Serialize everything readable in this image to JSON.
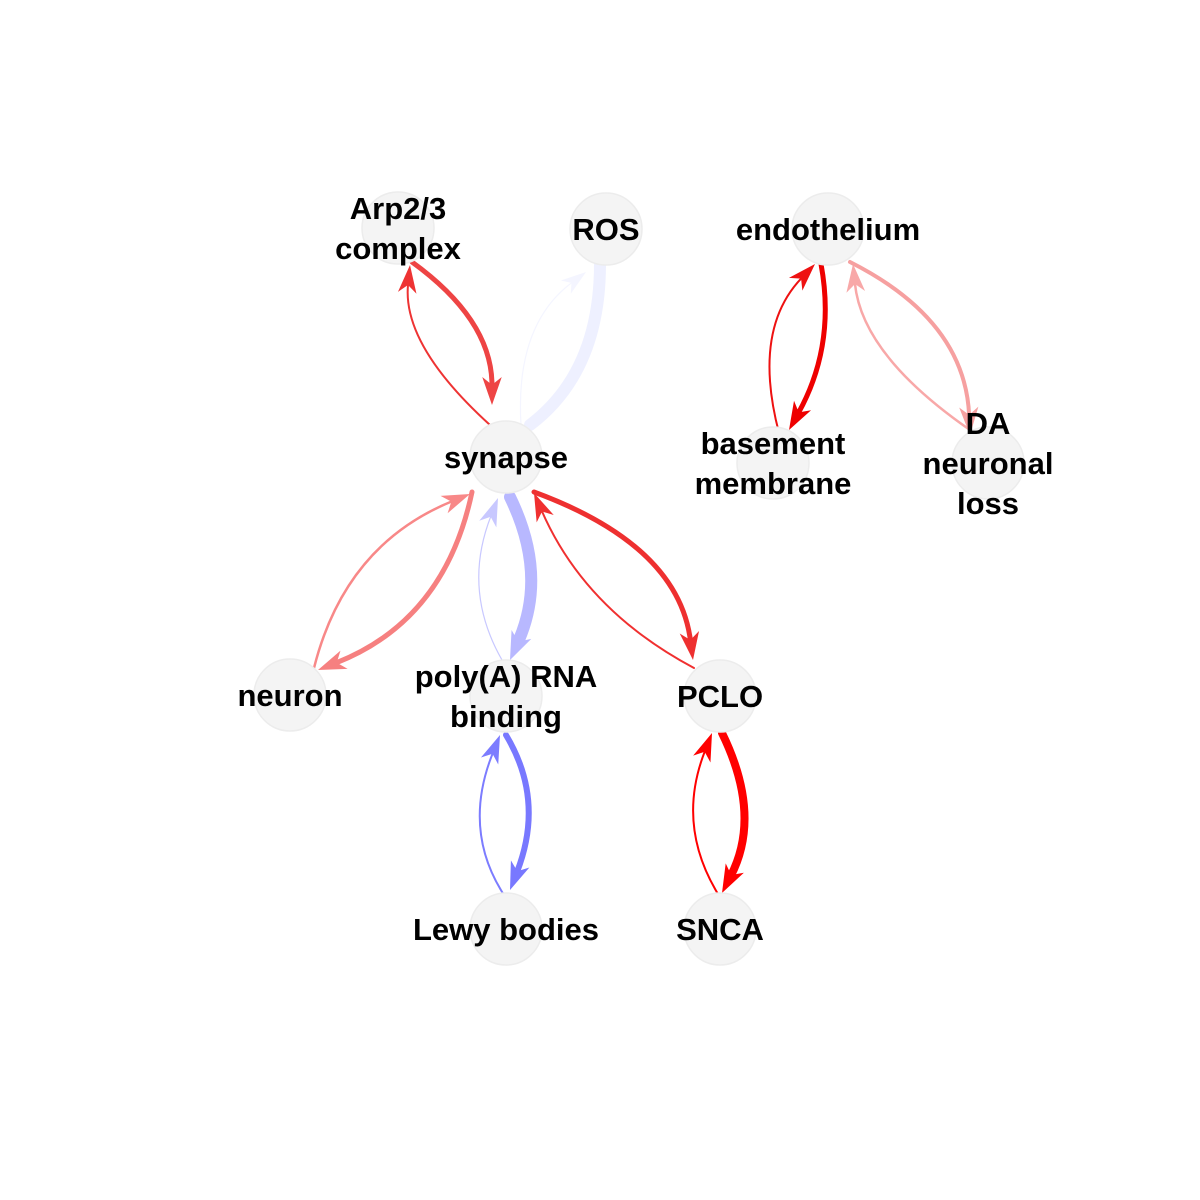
{
  "nodes": [
    {
      "id": "arp",
      "label_lines": [
        "Arp2/3",
        "complex"
      ]
    },
    {
      "id": "ros",
      "label_lines": [
        "ROS"
      ]
    },
    {
      "id": "endo",
      "label_lines": [
        "endothelium"
      ]
    },
    {
      "id": "syn",
      "label_lines": [
        "synapse"
      ]
    },
    {
      "id": "bm",
      "label_lines": [
        "basement",
        "membrane"
      ]
    },
    {
      "id": "da",
      "label_lines": [
        "DA",
        "neuronal",
        "loss"
      ]
    },
    {
      "id": "neu",
      "label_lines": [
        "neuron"
      ]
    },
    {
      "id": "poly",
      "label_lines": [
        "poly(A) RNA",
        "binding"
      ]
    },
    {
      "id": "pclo",
      "label_lines": [
        "PCLO"
      ]
    },
    {
      "id": "lewy",
      "label_lines": [
        "Lewy bodies"
      ]
    },
    {
      "id": "snca",
      "label_lines": [
        "SNCA"
      ]
    }
  ],
  "edges": [
    {
      "id": "syn-arp",
      "source": "syn",
      "target": "arp",
      "color": "#ee3333"
    },
    {
      "id": "arp-syn",
      "source": "arp",
      "target": "syn",
      "color": "#ee4444"
    },
    {
      "id": "syn-ros-thin",
      "source": "syn",
      "target": "ros",
      "color": "#f4f5ff"
    },
    {
      "id": "ros-syn",
      "source": "ros",
      "target": "syn",
      "color": "#eef0ff"
    },
    {
      "id": "bm-endo",
      "source": "bm",
      "target": "endo",
      "color": "#ee1111"
    },
    {
      "id": "endo-bm",
      "source": "endo",
      "target": "bm",
      "color": "#ee0000"
    },
    {
      "id": "da-endo",
      "source": "da",
      "target": "endo",
      "color": "#f8a8a8"
    },
    {
      "id": "endo-da",
      "source": "endo",
      "target": "da",
      "color": "#f6a0a0"
    },
    {
      "id": "neu-syn",
      "source": "neu",
      "target": "syn",
      "color": "#f88888"
    },
    {
      "id": "syn-neu",
      "source": "syn",
      "target": "neu",
      "color": "#f68080"
    },
    {
      "id": "poly-syn",
      "source": "poly",
      "target": "syn",
      "color": "#c8c8ff"
    },
    {
      "id": "syn-poly",
      "source": "syn",
      "target": "poly",
      "color": "#b8b8ff"
    },
    {
      "id": "pclo-syn",
      "source": "pclo",
      "target": "syn",
      "color": "#f03030"
    },
    {
      "id": "syn-pclo",
      "source": "syn",
      "target": "pclo",
      "color": "#ee3030"
    },
    {
      "id": "lewy-poly",
      "source": "lewy",
      "target": "poly",
      "color": "#7c7cff"
    },
    {
      "id": "poly-lewy",
      "source": "poly",
      "target": "lewy",
      "color": "#7878ff"
    },
    {
      "id": "snca-pclo",
      "source": "snca",
      "target": "pclo",
      "color": "#ff0000"
    },
    {
      "id": "pclo-snca",
      "source": "pclo",
      "target": "snca",
      "color": "#ff0000"
    }
  ]
}
